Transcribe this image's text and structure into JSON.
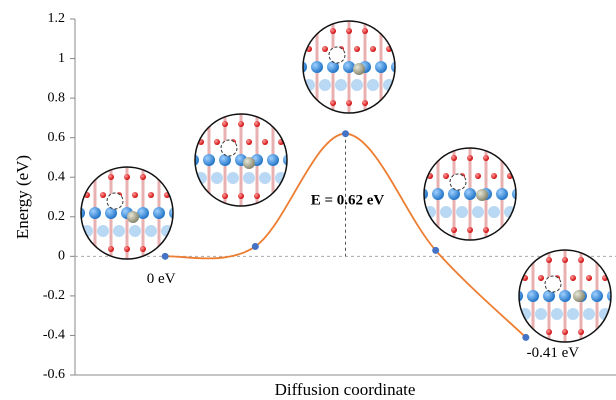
{
  "chart_data": {
    "type": "line",
    "y_label": "Energy (eV)",
    "x_label": "Diffusion coordinate",
    "categories": [
      null,
      null,
      null,
      null,
      null
    ],
    "series": [
      {
        "color": "#ed7d31",
        "marker_color": "#4472c4",
        "values": [
          0,
          0.05,
          0.62,
          0.03,
          -0.41
        ]
      }
    ],
    "ylim": [
      -0.6,
      1.2
    ],
    "yticks": [
      -0.6,
      -0.4,
      -0.2,
      0,
      0.2,
      0.4,
      0.6,
      0.8,
      1,
      1.2
    ],
    "annotations": [
      "0 eV",
      "E = 0.62 eV",
      "-0.41 eV"
    ]
  }
}
